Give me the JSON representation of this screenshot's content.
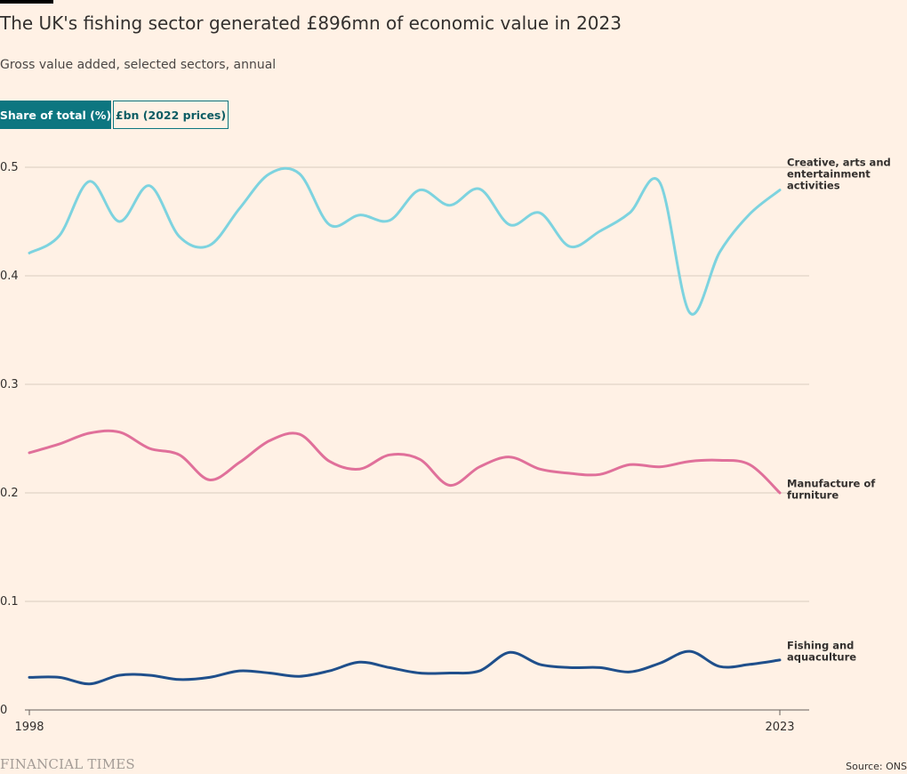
{
  "header": {
    "title": "The UK's fishing sector generated £896mn of economic value in 2023",
    "subtitle": "Gross value added, selected sectors, annual"
  },
  "toggles": {
    "share_label": "Share of total (%)",
    "gbp_label": "£bn (2022 prices)"
  },
  "footer": {
    "logo": "FINANCIAL TIMES",
    "source": "Source: ONS"
  },
  "chart_data": {
    "type": "line",
    "title": "The UK's fishing sector generated £896mn of economic value in 2023",
    "subtitle": "Gross value added, selected sectors, annual",
    "xlabel": "",
    "ylabel": "",
    "x": [
      1998,
      1999,
      2000,
      2001,
      2002,
      2003,
      2004,
      2005,
      2006,
      2007,
      2008,
      2009,
      2010,
      2011,
      2012,
      2013,
      2014,
      2015,
      2016,
      2017,
      2018,
      2019,
      2020,
      2021,
      2022,
      2023
    ],
    "x_tick_labels": [
      "1998",
      "2023"
    ],
    "y_ticks": [
      "0",
      "0.1",
      "0.2",
      "0.3",
      "0.4",
      "0.5"
    ],
    "ylim": [
      0,
      0.5
    ],
    "grid": true,
    "legend": "direct labels at line ends",
    "series": [
      {
        "name": "Creative, arts and entertainment activities",
        "label_lines": [
          "Creative, arts and",
          "entertainment",
          "activities"
        ],
        "color": "#7dd3df",
        "values": [
          0.421,
          0.437,
          0.487,
          0.45,
          0.483,
          0.436,
          0.428,
          0.462,
          0.494,
          0.494,
          0.447,
          0.456,
          0.451,
          0.479,
          0.465,
          0.48,
          0.447,
          0.458,
          0.427,
          0.441,
          0.458,
          0.486,
          0.366,
          0.422,
          0.457,
          0.479
        ]
      },
      {
        "name": "Manufacture of furniture",
        "label_lines": [
          "Manufacture of",
          "furniture"
        ],
        "color": "#e0709a",
        "values": [
          0.237,
          0.245,
          0.255,
          0.256,
          0.241,
          0.235,
          0.212,
          0.228,
          0.248,
          0.254,
          0.229,
          0.222,
          0.235,
          0.231,
          0.207,
          0.224,
          0.233,
          0.222,
          0.218,
          0.217,
          0.226,
          0.224,
          0.229,
          0.23,
          0.226,
          0.2
        ]
      },
      {
        "name": "Fishing and aquaculture",
        "label_lines": [
          "Fishing and",
          "aquaculture"
        ],
        "color": "#1f4f8b",
        "values": [
          0.03,
          0.03,
          0.024,
          0.032,
          0.032,
          0.028,
          0.03,
          0.036,
          0.034,
          0.031,
          0.036,
          0.044,
          0.039,
          0.034,
          0.034,
          0.036,
          0.053,
          0.042,
          0.039,
          0.039,
          0.035,
          0.043,
          0.054,
          0.04,
          0.042,
          0.046
        ]
      }
    ]
  }
}
